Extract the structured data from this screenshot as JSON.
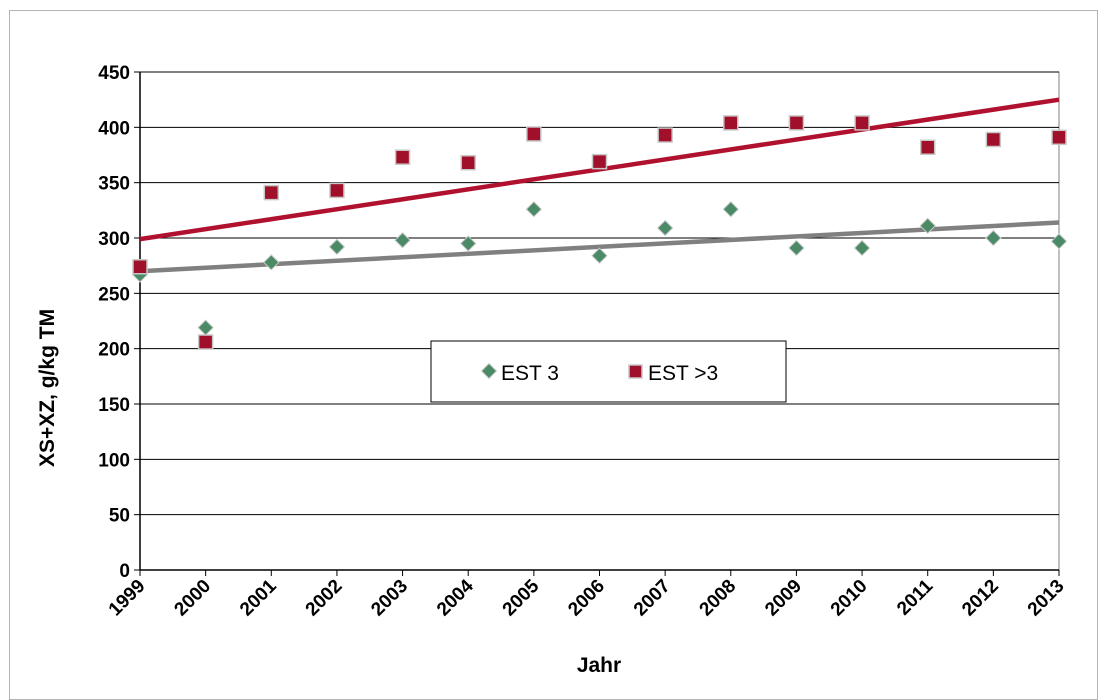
{
  "chart_data": {
    "type": "scatter",
    "title": "",
    "xlabel": "Jahr",
    "ylabel": "XS+XZ, g/kg TM",
    "x": [
      "1999",
      "2000",
      "2001",
      "2002",
      "2003",
      "2004",
      "2005",
      "2006",
      "2007",
      "2008",
      "2009",
      "2010",
      "2011",
      "2012",
      "2013"
    ],
    "ylim": [
      0,
      450
    ],
    "yticks": [
      0,
      50,
      100,
      150,
      200,
      250,
      300,
      350,
      400,
      450
    ],
    "grid": "horizontal",
    "legend_position": "center",
    "series": [
      {
        "name": "EST 3",
        "marker": "diamond",
        "color": "#4a8a66",
        "values": [
          267,
          219,
          278,
          292,
          298,
          295,
          326,
          284,
          309,
          326,
          291,
          291,
          311,
          300,
          297
        ],
        "trendline": {
          "start": 270,
          "end": 314,
          "color": "#808080"
        }
      },
      {
        "name": "EST >3",
        "marker": "square",
        "color": "#a0102a",
        "values": [
          274,
          206,
          341,
          343,
          373,
          368,
          394,
          369,
          393,
          404,
          404,
          404,
          382,
          389,
          391
        ],
        "trendline": {
          "start": 299,
          "end": 425,
          "color": "#b0112e"
        }
      }
    ]
  }
}
